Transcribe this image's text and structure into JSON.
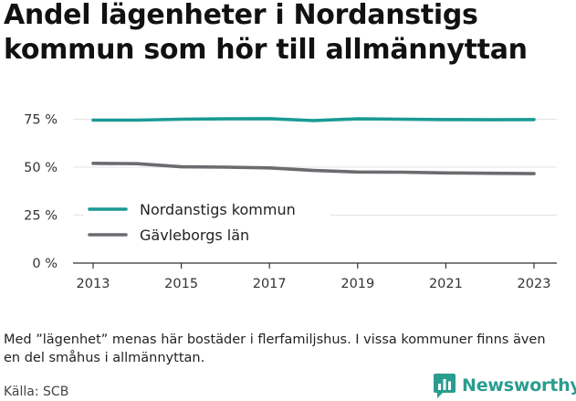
{
  "chart_data": {
    "type": "line",
    "title": "Andel lägenheter i Nordanstigs kommun som hör till allmännyttan",
    "x": [
      2013,
      2014,
      2015,
      2016,
      2017,
      2018,
      2019,
      2020,
      2021,
      2022,
      2023
    ],
    "x_ticks": [
      "2013",
      "2015",
      "2017",
      "2019",
      "2021",
      "2023"
    ],
    "y_ticks": [
      "0 %",
      "25 %",
      "50 %",
      "75 %"
    ],
    "ylim": [
      0,
      80
    ],
    "grid": true,
    "legend_placement": "left",
    "series": [
      {
        "name": "Nordanstigs kommun",
        "color": "#1a9a94",
        "values": [
          74.5,
          74.5,
          75.0,
          75.2,
          75.3,
          74.3,
          75.2,
          75.0,
          74.8,
          74.7,
          74.8
        ]
      },
      {
        "name": "Gävleborgs län",
        "color": "#6b6b70",
        "values": [
          52.0,
          51.8,
          50.2,
          50.0,
          49.6,
          48.3,
          47.5,
          47.4,
          47.0,
          46.8,
          46.6
        ]
      }
    ]
  },
  "note": "Med ”lägenhet” menas här bostäder i flerfamiljshus. I vissa kommuner finns även en del småhus i allmännyttan.",
  "source": "Källa: SCB",
  "brand": {
    "name": "Newsworthy",
    "icon": "bar-chart-speech-bubble-icon",
    "color": "#2a9d8f"
  }
}
